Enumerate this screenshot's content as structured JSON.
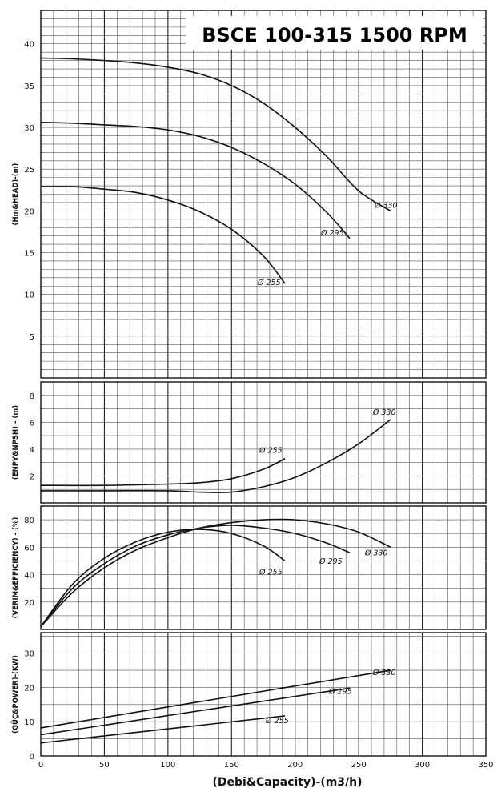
{
  "chart_data": [
    {
      "type": "line",
      "title": "BSCE 100-315 1500 RPM",
      "ylabel": "(Hm&HEAD)-(m)",
      "ylim": [
        0,
        44
      ],
      "yticks": [
        5,
        10,
        15,
        20,
        25,
        30,
        35,
        40
      ],
      "xlim": [
        0,
        350
      ],
      "grid": true,
      "series": [
        {
          "name": "Ø 330",
          "x": [
            0,
            25,
            50,
            75,
            100,
            125,
            150,
            175,
            200,
            225,
            250,
            275
          ],
          "y": [
            38.3,
            38.2,
            38.0,
            37.7,
            37.2,
            36.4,
            35.0,
            32.9,
            30.0,
            26.5,
            22.4,
            20.0
          ]
        },
        {
          "name": "Ø 295",
          "x": [
            0,
            25,
            50,
            75,
            100,
            125,
            150,
            175,
            200,
            225,
            243
          ],
          "y": [
            30.6,
            30.5,
            30.3,
            30.1,
            29.7,
            28.9,
            27.6,
            25.7,
            23.2,
            19.8,
            16.7
          ]
        },
        {
          "name": "Ø 255",
          "x": [
            0,
            25,
            50,
            75,
            100,
            125,
            150,
            175,
            192
          ],
          "y": [
            22.9,
            22.9,
            22.6,
            22.2,
            21.3,
            19.9,
            17.8,
            14.6,
            11.3
          ]
        }
      ]
    },
    {
      "type": "line",
      "ylabel": "(ENPY&NPSH) - (m)",
      "ylim": [
        0,
        9
      ],
      "yticks": [
        2,
        4,
        6,
        8
      ],
      "xlim": [
        0,
        350
      ],
      "grid": true,
      "series": [
        {
          "name": "Ø 255",
          "x": [
            0,
            50,
            100,
            125,
            150,
            175,
            192
          ],
          "y": [
            1.3,
            1.3,
            1.4,
            1.5,
            1.8,
            2.5,
            3.3
          ]
        },
        {
          "name": "Ø 330",
          "x": [
            0,
            50,
            100,
            125,
            150,
            175,
            200,
            225,
            250,
            275
          ],
          "y": [
            0.9,
            0.9,
            0.9,
            0.8,
            0.8,
            1.2,
            1.9,
            3.0,
            4.4,
            6.2
          ]
        }
      ]
    },
    {
      "type": "line",
      "ylabel": "(VERIM&EFFICIENCY) - (%)",
      "ylim": [
        0,
        90
      ],
      "yticks": [
        20,
        40,
        60,
        80
      ],
      "xlim": [
        0,
        350
      ],
      "grid": true,
      "series": [
        {
          "name": "Ø 255",
          "x": [
            0,
            25,
            50,
            75,
            100,
            125,
            150,
            175,
            192
          ],
          "y": [
            2,
            33,
            52,
            64,
            71,
            73,
            70,
            61,
            50
          ]
        },
        {
          "name": "Ø 295",
          "x": [
            0,
            25,
            50,
            75,
            100,
            125,
            150,
            175,
            200,
            225,
            243
          ],
          "y": [
            2,
            30,
            48,
            61,
            69,
            74,
            76,
            74,
            70,
            63,
            56
          ]
        },
        {
          "name": "Ø 330",
          "x": [
            0,
            25,
            50,
            75,
            100,
            125,
            150,
            175,
            200,
            225,
            250,
            275
          ],
          "y": [
            2,
            27,
            45,
            58,
            67,
            74,
            78,
            80,
            80,
            77,
            71,
            60
          ]
        }
      ]
    },
    {
      "type": "line",
      "ylabel": "(GÜÇ&POWER)-(KW)",
      "ylim": [
        0,
        36
      ],
      "yticks": [
        0,
        10,
        20,
        30
      ],
      "xlim": [
        0,
        350
      ],
      "xticks": [
        0,
        50,
        100,
        150,
        200,
        250,
        300,
        350
      ],
      "xlabel": "(Debi&Capacity)-(m3/h)",
      "grid": true,
      "series": [
        {
          "name": "Ø 330",
          "x": [
            0,
            275
          ],
          "y": [
            8.2,
            25.0
          ]
        },
        {
          "name": "Ø 295",
          "x": [
            0,
            243
          ],
          "y": [
            6.2,
            19.8
          ]
        },
        {
          "name": "Ø 255",
          "x": [
            0,
            192
          ],
          "y": [
            3.8,
            11.7
          ]
        }
      ]
    }
  ]
}
